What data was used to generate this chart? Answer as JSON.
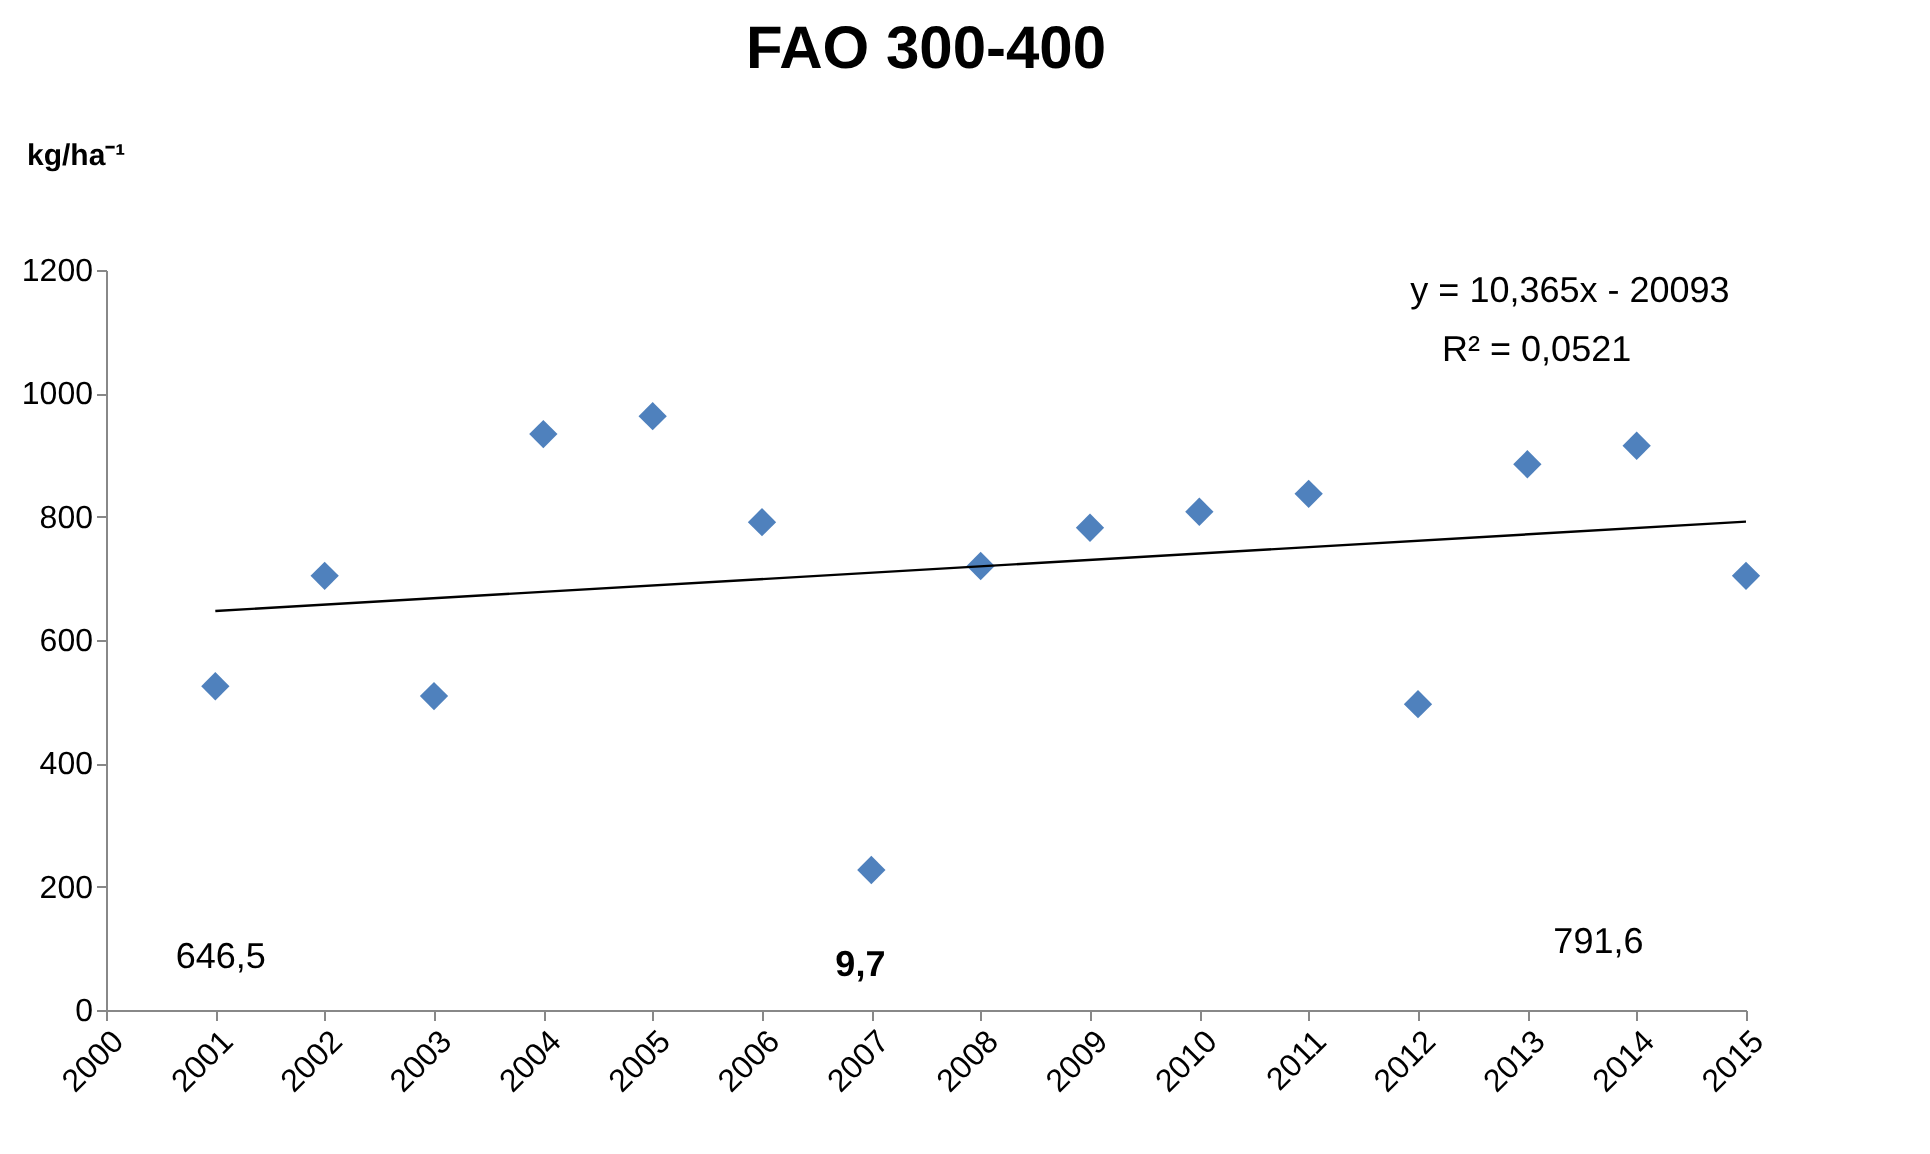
{
  "chart_data": {
    "type": "scatter",
    "title": "FAO 300-400",
    "ylabel": "kg/ha⁻¹",
    "x": [
      2001,
      2002,
      2003,
      2004,
      2005,
      2006,
      2007,
      2008,
      2009,
      2010,
      2011,
      2012,
      2013,
      2014,
      2015
    ],
    "series": [
      {
        "color": "#4f81bd",
        "marker": "diamond",
        "values": [
          525,
          704,
          509,
          934,
          963,
          791,
          227,
          720,
          782,
          808,
          837,
          496,
          885,
          915,
          704
        ]
      },
      {
        "type": "line",
        "color": "#000000",
        "line_style": "solid",
        "x": [
          2001,
          2015
        ],
        "values": [
          647,
          792
        ]
      }
    ],
    "xlim": [
      2000,
      2015
    ],
    "xticks": [
      2000,
      2001,
      2002,
      2003,
      2004,
      2005,
      2006,
      2007,
      2008,
      2009,
      2010,
      2011,
      2012,
      2013,
      2014,
      2015
    ],
    "ylim": [
      0,
      1200
    ],
    "yticks": [
      0,
      200,
      400,
      600,
      800,
      1000,
      1200
    ],
    "grid": false,
    "annotations": [
      "y = 10,365x - 20093",
      "R² = 0,0521",
      "646,5",
      "9,7",
      "791,6"
    ]
  }
}
